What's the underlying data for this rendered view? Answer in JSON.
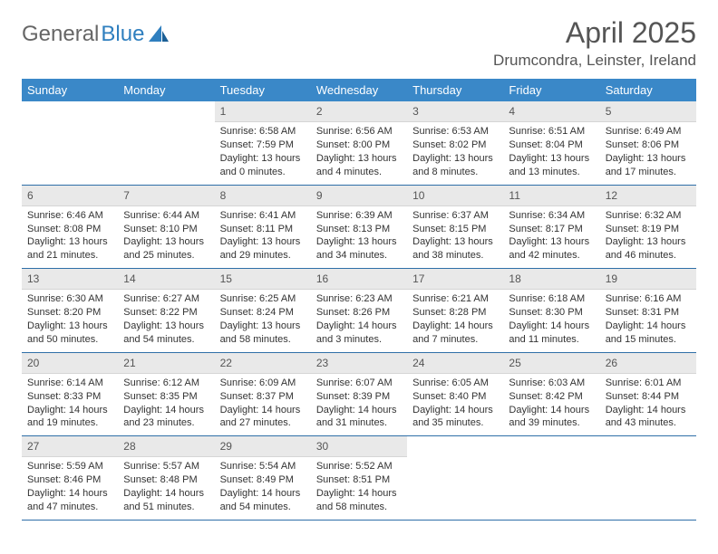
{
  "logo": {
    "text_gray": "General",
    "text_blue": "Blue",
    "icon_color": "#2f7fbf"
  },
  "title": "April 2025",
  "location": "Drumcondra, Leinster, Ireland",
  "header_bg": "#3a88c8",
  "daynum_bg": "#e9e9e9",
  "row_border": "#2f6fa8",
  "day_headers": [
    "Sunday",
    "Monday",
    "Tuesday",
    "Wednesday",
    "Thursday",
    "Friday",
    "Saturday"
  ],
  "weeks": [
    [
      {
        "n": "",
        "lines": []
      },
      {
        "n": "",
        "lines": []
      },
      {
        "n": "1",
        "lines": [
          "Sunrise: 6:58 AM",
          "Sunset: 7:59 PM",
          "Daylight: 13 hours and 0 minutes."
        ]
      },
      {
        "n": "2",
        "lines": [
          "Sunrise: 6:56 AM",
          "Sunset: 8:00 PM",
          "Daylight: 13 hours and 4 minutes."
        ]
      },
      {
        "n": "3",
        "lines": [
          "Sunrise: 6:53 AM",
          "Sunset: 8:02 PM",
          "Daylight: 13 hours and 8 minutes."
        ]
      },
      {
        "n": "4",
        "lines": [
          "Sunrise: 6:51 AM",
          "Sunset: 8:04 PM",
          "Daylight: 13 hours and 13 minutes."
        ]
      },
      {
        "n": "5",
        "lines": [
          "Sunrise: 6:49 AM",
          "Sunset: 8:06 PM",
          "Daylight: 13 hours and 17 minutes."
        ]
      }
    ],
    [
      {
        "n": "6",
        "lines": [
          "Sunrise: 6:46 AM",
          "Sunset: 8:08 PM",
          "Daylight: 13 hours and 21 minutes."
        ]
      },
      {
        "n": "7",
        "lines": [
          "Sunrise: 6:44 AM",
          "Sunset: 8:10 PM",
          "Daylight: 13 hours and 25 minutes."
        ]
      },
      {
        "n": "8",
        "lines": [
          "Sunrise: 6:41 AM",
          "Sunset: 8:11 PM",
          "Daylight: 13 hours and 29 minutes."
        ]
      },
      {
        "n": "9",
        "lines": [
          "Sunrise: 6:39 AM",
          "Sunset: 8:13 PM",
          "Daylight: 13 hours and 34 minutes."
        ]
      },
      {
        "n": "10",
        "lines": [
          "Sunrise: 6:37 AM",
          "Sunset: 8:15 PM",
          "Daylight: 13 hours and 38 minutes."
        ]
      },
      {
        "n": "11",
        "lines": [
          "Sunrise: 6:34 AM",
          "Sunset: 8:17 PM",
          "Daylight: 13 hours and 42 minutes."
        ]
      },
      {
        "n": "12",
        "lines": [
          "Sunrise: 6:32 AM",
          "Sunset: 8:19 PM",
          "Daylight: 13 hours and 46 minutes."
        ]
      }
    ],
    [
      {
        "n": "13",
        "lines": [
          "Sunrise: 6:30 AM",
          "Sunset: 8:20 PM",
          "Daylight: 13 hours and 50 minutes."
        ]
      },
      {
        "n": "14",
        "lines": [
          "Sunrise: 6:27 AM",
          "Sunset: 8:22 PM",
          "Daylight: 13 hours and 54 minutes."
        ]
      },
      {
        "n": "15",
        "lines": [
          "Sunrise: 6:25 AM",
          "Sunset: 8:24 PM",
          "Daylight: 13 hours and 58 minutes."
        ]
      },
      {
        "n": "16",
        "lines": [
          "Sunrise: 6:23 AM",
          "Sunset: 8:26 PM",
          "Daylight: 14 hours and 3 minutes."
        ]
      },
      {
        "n": "17",
        "lines": [
          "Sunrise: 6:21 AM",
          "Sunset: 8:28 PM",
          "Daylight: 14 hours and 7 minutes."
        ]
      },
      {
        "n": "18",
        "lines": [
          "Sunrise: 6:18 AM",
          "Sunset: 8:30 PM",
          "Daylight: 14 hours and 11 minutes."
        ]
      },
      {
        "n": "19",
        "lines": [
          "Sunrise: 6:16 AM",
          "Sunset: 8:31 PM",
          "Daylight: 14 hours and 15 minutes."
        ]
      }
    ],
    [
      {
        "n": "20",
        "lines": [
          "Sunrise: 6:14 AM",
          "Sunset: 8:33 PM",
          "Daylight: 14 hours and 19 minutes."
        ]
      },
      {
        "n": "21",
        "lines": [
          "Sunrise: 6:12 AM",
          "Sunset: 8:35 PM",
          "Daylight: 14 hours and 23 minutes."
        ]
      },
      {
        "n": "22",
        "lines": [
          "Sunrise: 6:09 AM",
          "Sunset: 8:37 PM",
          "Daylight: 14 hours and 27 minutes."
        ]
      },
      {
        "n": "23",
        "lines": [
          "Sunrise: 6:07 AM",
          "Sunset: 8:39 PM",
          "Daylight: 14 hours and 31 minutes."
        ]
      },
      {
        "n": "24",
        "lines": [
          "Sunrise: 6:05 AM",
          "Sunset: 8:40 PM",
          "Daylight: 14 hours and 35 minutes."
        ]
      },
      {
        "n": "25",
        "lines": [
          "Sunrise: 6:03 AM",
          "Sunset: 8:42 PM",
          "Daylight: 14 hours and 39 minutes."
        ]
      },
      {
        "n": "26",
        "lines": [
          "Sunrise: 6:01 AM",
          "Sunset: 8:44 PM",
          "Daylight: 14 hours and 43 minutes."
        ]
      }
    ],
    [
      {
        "n": "27",
        "lines": [
          "Sunrise: 5:59 AM",
          "Sunset: 8:46 PM",
          "Daylight: 14 hours and 47 minutes."
        ]
      },
      {
        "n": "28",
        "lines": [
          "Sunrise: 5:57 AM",
          "Sunset: 8:48 PM",
          "Daylight: 14 hours and 51 minutes."
        ]
      },
      {
        "n": "29",
        "lines": [
          "Sunrise: 5:54 AM",
          "Sunset: 8:49 PM",
          "Daylight: 14 hours and 54 minutes."
        ]
      },
      {
        "n": "30",
        "lines": [
          "Sunrise: 5:52 AM",
          "Sunset: 8:51 PM",
          "Daylight: 14 hours and 58 minutes."
        ]
      },
      {
        "n": "",
        "lines": []
      },
      {
        "n": "",
        "lines": []
      },
      {
        "n": "",
        "lines": []
      }
    ]
  ]
}
